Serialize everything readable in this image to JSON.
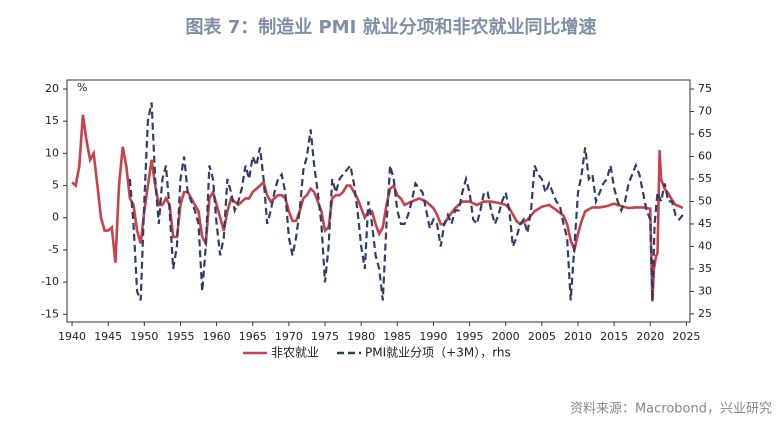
{
  "chart_data": {
    "type": "line",
    "title": "图表 7：制造业 PMI 就业分项和非农就业同比增速",
    "y_unit": "%",
    "source": "资料来源：Macrobond，兴业研究",
    "xlim": [
      1939.3,
      2025.5
    ],
    "xticks": [
      1940,
      1945,
      1950,
      1955,
      1960,
      1965,
      1970,
      1975,
      1980,
      1985,
      1990,
      1995,
      2000,
      2005,
      2010,
      2015,
      2020,
      2025
    ],
    "ylim": [
      -16.2,
      21.4
    ],
    "yticks": [
      -15,
      -10,
      -5,
      0,
      5,
      10,
      15,
      20
    ],
    "y2lim": [
      23.2,
      77
    ],
    "y2ticks": [
      25,
      30,
      35,
      40,
      45,
      50,
      55,
      60,
      65,
      70,
      75
    ],
    "series": [
      {
        "name": "非农就业",
        "color": "#c8414b",
        "dash": false,
        "x": [
          1940,
          1940.5,
          1941,
          1941.5,
          1942,
          1942.5,
          1943,
          1943.5,
          1944,
          1944.5,
          1945,
          1945.5,
          1946,
          1946.5,
          1947,
          1947.5,
          1948,
          1948.5,
          1949,
          1949.5,
          1950,
          1950.5,
          1951,
          1951.5,
          1952,
          1952.5,
          1953,
          1953.5,
          1954,
          1954.5,
          1955,
          1955.5,
          1956,
          1956.5,
          1957,
          1957.5,
          1958,
          1958.5,
          1959,
          1959.5,
          1960,
          1960.5,
          1961,
          1961.5,
          1962,
          1962.5,
          1963,
          1963.5,
          1964,
          1964.5,
          1965,
          1965.5,
          1966,
          1966.5,
          1967,
          1967.5,
          1968,
          1968.5,
          1969,
          1969.5,
          1970,
          1970.5,
          1971,
          1971.5,
          1972,
          1972.5,
          1973,
          1973.5,
          1974,
          1974.5,
          1975,
          1975.5,
          1976,
          1976.5,
          1977,
          1977.5,
          1978,
          1978.5,
          1979,
          1979.5,
          1980,
          1980.5,
          1981,
          1981.5,
          1982,
          1982.5,
          1983,
          1983.5,
          1984,
          1984.5,
          1985,
          1985.5,
          1986,
          1987,
          1988,
          1989,
          1990,
          1990.5,
          1991,
          1991.5,
          1992,
          1993,
          1994,
          1995,
          1996,
          1997,
          1998,
          1999,
          2000,
          2000.5,
          2001,
          2001.5,
          2002,
          2003,
          2004,
          2005,
          2006,
          2007,
          2008,
          2008.5,
          2009,
          2009.5,
          2010,
          2010.5,
          2011,
          2012,
          2013,
          2014,
          2015,
          2016,
          2017,
          2018,
          2019,
          2020,
          2020.3,
          2020.5,
          2020.8,
          2021,
          2021.3,
          2021.5,
          2022,
          2022.5,
          2023,
          2023.5,
          2024,
          2024.5
        ],
        "values": [
          5.5,
          5,
          8,
          16,
          12,
          9,
          10,
          5,
          0,
          -2,
          -2,
          -1.5,
          -7,
          5,
          11,
          8,
          3,
          2,
          -2,
          -4,
          1,
          5,
          9,
          5,
          2,
          2,
          3,
          2,
          -3,
          -3,
          2,
          4,
          4,
          3,
          2,
          1,
          -3,
          -4,
          3,
          4,
          2,
          0,
          -2,
          1,
          3,
          2.5,
          2,
          2.5,
          3,
          3,
          4,
          4.5,
          5,
          5.5,
          3.5,
          2.5,
          3,
          3.5,
          3.5,
          3,
          1,
          -0.5,
          -0.5,
          1,
          3,
          3.5,
          4.5,
          4,
          2.5,
          1,
          -2,
          -1.5,
          3,
          3.5,
          3.5,
          4,
          5,
          5,
          4,
          3,
          1.5,
          0,
          1,
          1,
          -1,
          -2.5,
          -1.5,
          2,
          4.5,
          5,
          3.5,
          3,
          2,
          2.5,
          3,
          2.5,
          1.5,
          0.5,
          -1,
          -1,
          0,
          1.5,
          2.5,
          2.5,
          2,
          2.5,
          2.5,
          2.3,
          2,
          1.5,
          0.5,
          -0.5,
          -1,
          -0.3,
          1,
          1.7,
          2,
          1.2,
          0.3,
          -1,
          -3.5,
          -5,
          -2.5,
          -0.5,
          1,
          1.6,
          1.6,
          1.8,
          2.2,
          1.8,
          1.5,
          1.6,
          1.6,
          1.4,
          -13,
          -8,
          -6,
          -5.5,
          10.5,
          6,
          4.5,
          3.8,
          2.8,
          2,
          1.8,
          1.5
        ]
      },
      {
        "name": "PMI就业分项（+3M），rhs",
        "color": "#2f3e66",
        "dash": true,
        "axis": "y2",
        "x": [
          1948,
          1948.5,
          1949,
          1949.5,
          1950,
          1950.5,
          1951,
          1951.5,
          1952,
          1952.5,
          1953,
          1953.5,
          1954,
          1954.5,
          1955,
          1955.5,
          1956,
          1956.5,
          1957,
          1957.5,
          1958,
          1958.5,
          1959,
          1959.5,
          1960,
          1960.5,
          1961,
          1961.5,
          1962,
          1962.5,
          1963,
          1963.5,
          1964,
          1964.5,
          1965,
          1965.5,
          1966,
          1966.5,
          1967,
          1967.5,
          1968,
          1968.5,
          1969,
          1969.5,
          1970,
          1970.5,
          1971,
          1971.5,
          1972,
          1972.5,
          1973,
          1973.5,
          1974,
          1974.5,
          1975,
          1975.5,
          1976,
          1976.5,
          1977,
          1977.5,
          1978,
          1978.5,
          1979,
          1979.5,
          1980,
          1980.5,
          1981,
          1981.5,
          1982,
          1982.5,
          1983,
          1983.5,
          1984,
          1984.5,
          1985,
          1985.5,
          1986,
          1986.5,
          1987,
          1987.5,
          1988,
          1988.5,
          1989,
          1989.5,
          1990,
          1990.5,
          1991,
          1991.5,
          1992,
          1992.5,
          1993,
          1993.5,
          1994,
          1994.5,
          1995,
          1995.5,
          1996,
          1996.5,
          1997,
          1997.5,
          1998,
          1998.5,
          1999,
          1999.5,
          2000,
          2000.5,
          2001,
          2001.5,
          2002,
          2002.5,
          2003,
          2003.5,
          2004,
          2004.5,
          2005,
          2005.5,
          2006,
          2006.5,
          2007,
          2007.5,
          2008,
          2008.5,
          2009,
          2009.5,
          2010,
          2010.5,
          2011,
          2011.5,
          2012,
          2012.5,
          2013,
          2013.5,
          2014,
          2014.5,
          2015,
          2015.5,
          2016,
          2016.5,
          2017,
          2017.5,
          2018,
          2018.5,
          2019,
          2019.5,
          2020,
          2020.3,
          2020.6,
          2021,
          2021.5,
          2022,
          2022.5,
          2023,
          2023.5,
          2024,
          2024.5
        ],
        "values": [
          55,
          45,
          30,
          28,
          50,
          68,
          72,
          55,
          45,
          55,
          58,
          48,
          35,
          40,
          55,
          60,
          52,
          50,
          48,
          45,
          30,
          40,
          58,
          55,
          45,
          38,
          42,
          55,
          52,
          48,
          50,
          53,
          58,
          55,
          60,
          58,
          62,
          55,
          45,
          48,
          52,
          55,
          56,
          52,
          42,
          38,
          42,
          48,
          57,
          60,
          66,
          58,
          52,
          45,
          32,
          40,
          55,
          52,
          55,
          56,
          57,
          58,
          54,
          48,
          40,
          35,
          50,
          45,
          38,
          35,
          28,
          45,
          58,
          55,
          48,
          45,
          45,
          47,
          50,
          54,
          53,
          52,
          48,
          44,
          46,
          45,
          40,
          45,
          47,
          45,
          48,
          48,
          52,
          55,
          52,
          46,
          45,
          48,
          52,
          52,
          48,
          45,
          47,
          50,
          52,
          48,
          40,
          42,
          45,
          46,
          43,
          48,
          58,
          56,
          55,
          52,
          54,
          52,
          50,
          49,
          45,
          42,
          28,
          40,
          52,
          56,
          62,
          55,
          56,
          50,
          52,
          54,
          55,
          58,
          53,
          50,
          48,
          50,
          54,
          56,
          58,
          56,
          52,
          48,
          46,
          28,
          45,
          52,
          50,
          54,
          50,
          50,
          47,
          46,
          47
        ]
      }
    ]
  }
}
